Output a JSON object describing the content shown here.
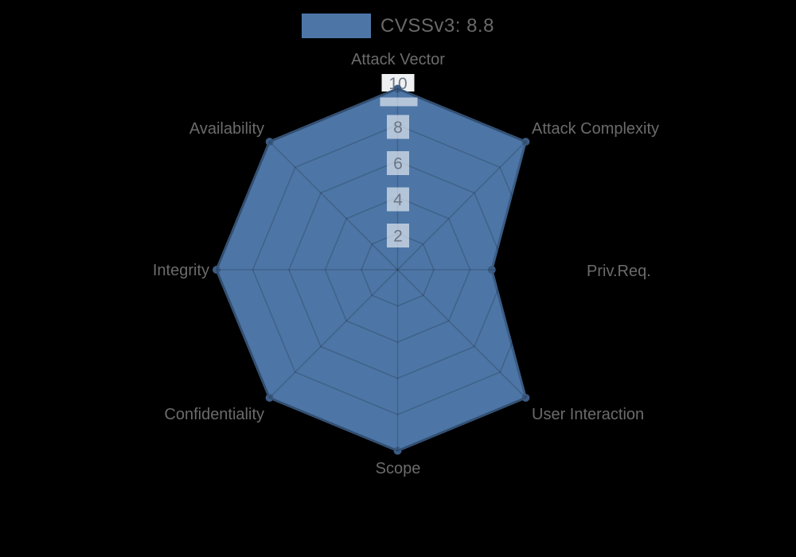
{
  "legend": {
    "label": "CVSSv3: 8.8"
  },
  "chart_data": {
    "type": "radar",
    "title": "",
    "legend_entries": [
      {
        "label": "CVSSv3: 8.8"
      }
    ],
    "axes": [
      "Attack Vector",
      "Attack Complexity",
      "Priv.Req.",
      "User Interaction",
      "Scope",
      "Confidentiality",
      "Integrity",
      "Availability"
    ],
    "series": [
      {
        "name": "CVSSv3: 8.8",
        "values": [
          10,
          10,
          5.2,
          10,
          10,
          10,
          10,
          10
        ]
      }
    ],
    "scale": {
      "min": 0,
      "max": 10,
      "step": 2,
      "tick_labels": [
        "2",
        "4",
        "6",
        "8",
        "10"
      ]
    },
    "grid": true,
    "legend_position": "top"
  },
  "colors": {
    "background": "#000000",
    "series_fill": "#4d76a6",
    "series_stroke": "#3b5c84",
    "point": "#3b5c84",
    "grid_line": "rgba(0,0,0,0.17)",
    "tick_backdrop": "rgba(255,255,255,0.58)",
    "tick_backdrop_top": "#eef0f2",
    "tick_text": "#6b7685",
    "axis_label_text": "#6b6b6b",
    "legend_text": "#696969"
  }
}
